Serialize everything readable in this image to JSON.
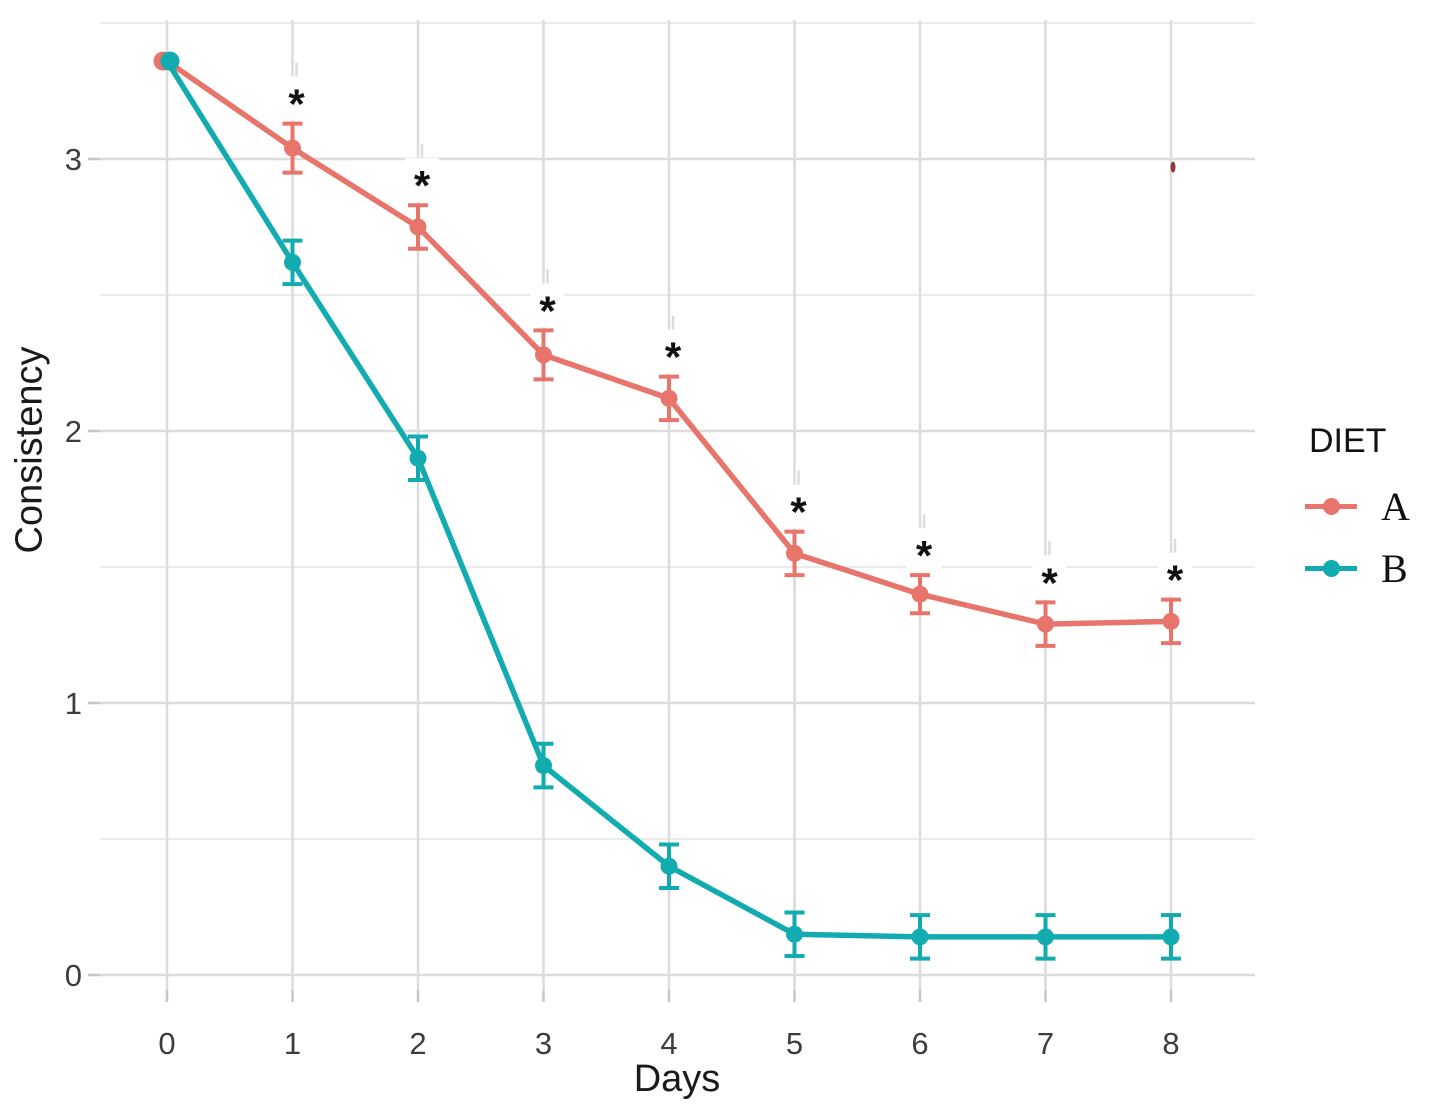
{
  "figure": {
    "background": "#ffffff"
  },
  "chart_data": {
    "type": "line",
    "title": "",
    "xlabel": "Days",
    "ylabel": "Consistency",
    "x": [
      0,
      1,
      2,
      3,
      4,
      5,
      6,
      7,
      8
    ],
    "x_tick_labels": [
      "0",
      "1",
      "2",
      "3",
      "4",
      "5",
      "6",
      "7",
      "8"
    ],
    "y_tick_values": [
      0,
      1,
      2,
      3
    ],
    "y_tick_labels": [
      "0",
      "1",
      "2",
      "3"
    ],
    "y_minor_gridlines": [
      0.5,
      1.5,
      2.5,
      3.5
    ],
    "xlim": [
      -0.5,
      8.6
    ],
    "ylim": [
      0,
      3.5
    ],
    "grid": "light-gray on white, major and minor horizontal, major vertical",
    "series": [
      {
        "name": "A",
        "color": "#E8756C",
        "values": [
          3.36,
          3.04,
          2.75,
          2.28,
          2.12,
          1.55,
          1.4,
          1.29,
          1.3
        ],
        "errors": [
          0,
          0.09,
          0.08,
          0.09,
          0.08,
          0.08,
          0.07,
          0.08,
          0.08
        ]
      },
      {
        "name": "B",
        "color": "#12ABB0",
        "values": [
          3.36,
          2.62,
          1.9,
          0.77,
          0.4,
          0.15,
          0.14,
          0.14,
          0.14
        ],
        "errors": [
          0,
          0.08,
          0.08,
          0.08,
          0.08,
          0.08,
          0.08,
          0.08,
          0.08
        ]
      }
    ],
    "significance": {
      "symbol": "*",
      "series": "A",
      "days": [
        1,
        2,
        3,
        4,
        5,
        6,
        7,
        8
      ]
    },
    "artifacts": {
      "stray_red_mark": {
        "day": 8,
        "value": 2.97
      }
    },
    "legend": {
      "title": "DIET",
      "position": "right",
      "items": [
        {
          "label": "A",
          "color": "#E8756C"
        },
        {
          "label": "B",
          "color": "#12ABB0"
        }
      ]
    },
    "colors": {
      "grid_major": "#dcdcdc",
      "grid_minor": "#ebebeb",
      "tick_mark": "#c6c6c6",
      "tick_text": "#3d3d3d",
      "axis_text": "#1a1a1a"
    }
  }
}
